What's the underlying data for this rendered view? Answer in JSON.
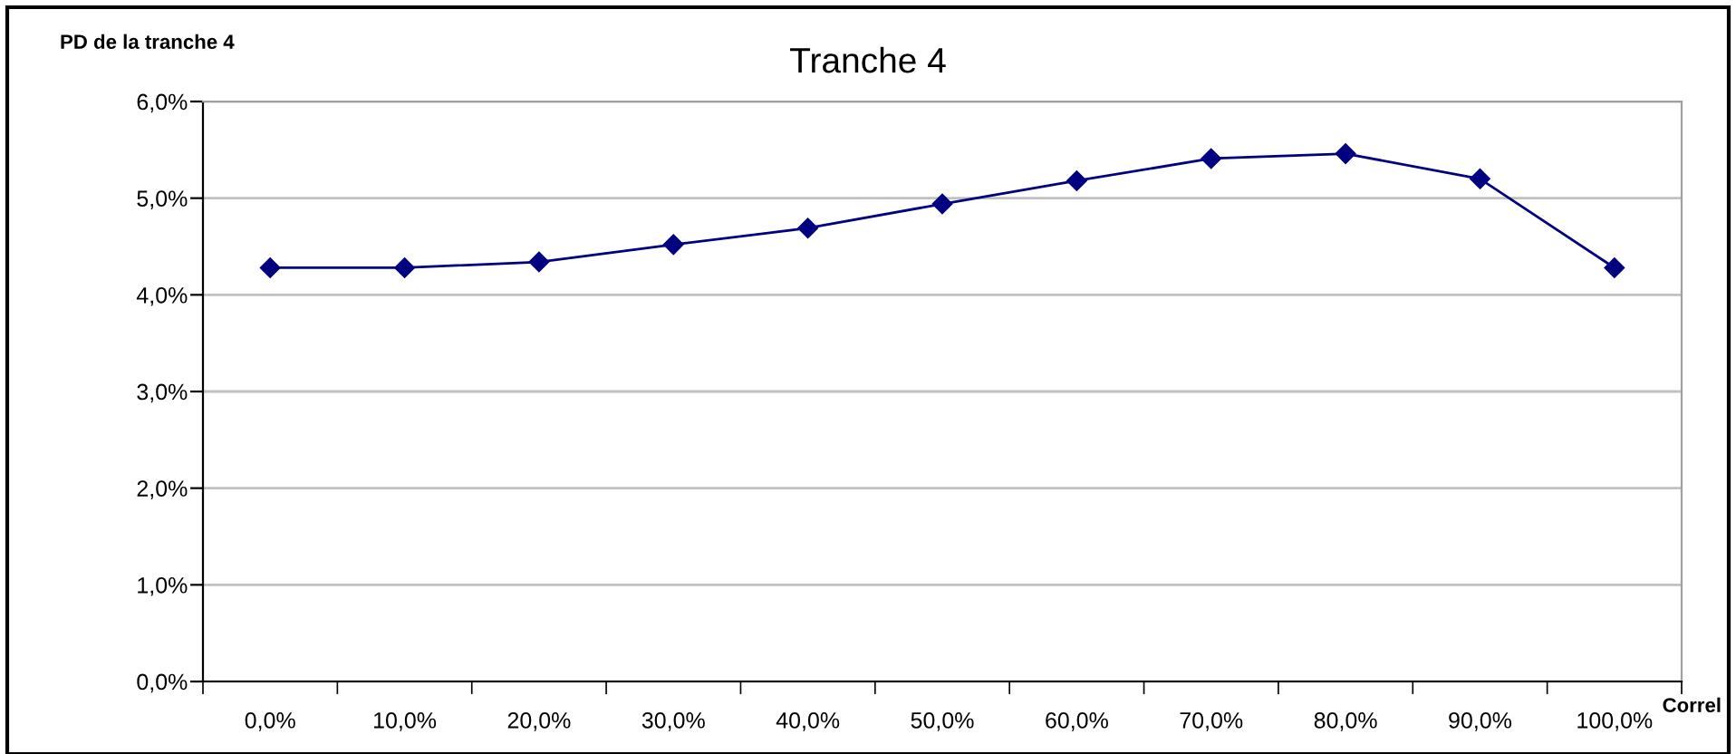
{
  "chart_data": {
    "type": "line",
    "title": "Tranche 4",
    "ylabel": "PD de la tranche 4",
    "xlabel": "Correl",
    "categories": [
      "0,0%",
      "10,0%",
      "20,0%",
      "30,0%",
      "40,0%",
      "50,0%",
      "60,0%",
      "70,0%",
      "80,0%",
      "90,0%",
      "100,0%"
    ],
    "series": [
      {
        "color": "#000080",
        "values": [
          4.28,
          4.28,
          4.34,
          4.52,
          4.69,
          4.94,
          5.18,
          5.41,
          5.46,
          5.2,
          4.28
        ]
      }
    ],
    "ylim": [
      0,
      6
    ],
    "yticks": [
      {
        "value": 0,
        "label": "0,0%"
      },
      {
        "value": 1,
        "label": "1,0%"
      },
      {
        "value": 2,
        "label": "2,0%"
      },
      {
        "value": 3,
        "label": "3,0%"
      },
      {
        "value": 4,
        "label": "4,0%"
      },
      {
        "value": 5,
        "label": "5,0%"
      },
      {
        "value": 6,
        "label": "6,0%"
      }
    ],
    "grid": "y",
    "marker": "diamond",
    "line_style": "solid",
    "legend": false
  }
}
